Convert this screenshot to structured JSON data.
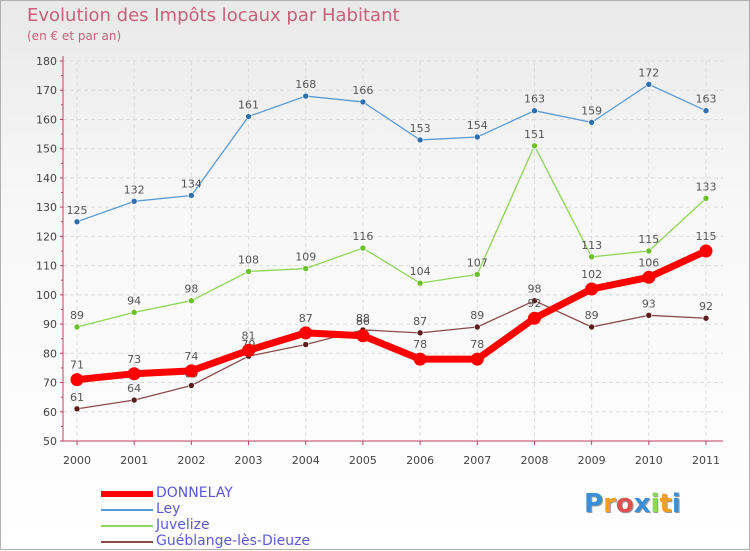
{
  "header": {
    "title": "Evolution des Impôts locaux par Habitant",
    "subtitle": "(en € et par an)"
  },
  "chart_data": {
    "type": "line",
    "title": "Evolution des Impôts locaux par Habitant",
    "subtitle": "(en € et par an)",
    "xlabel": "",
    "ylabel": "",
    "ylim": [
      50,
      180
    ],
    "yticks": [
      50,
      60,
      70,
      80,
      90,
      100,
      110,
      120,
      130,
      140,
      150,
      160,
      170,
      180
    ],
    "categories": [
      "2000",
      "2001",
      "2002",
      "2003",
      "2004",
      "2005",
      "2006",
      "2007",
      "2008",
      "2009",
      "2010",
      "2011"
    ],
    "grid": true,
    "legend_position": "bottom-left",
    "series": [
      {
        "name": "Ley",
        "color": "#5b9bd5",
        "marker_color": "#2f6fb0",
        "values": [
          125,
          132,
          134,
          161,
          168,
          166,
          153,
          154,
          163,
          159,
          172,
          163
        ]
      },
      {
        "name": "Juvelize",
        "color": "#8fd65a",
        "marker_color": "#6cc02a",
        "values": [
          89,
          94,
          98,
          108,
          109,
          116,
          104,
          107,
          151,
          113,
          115,
          133
        ]
      },
      {
        "name": "Guéblange-lès-Dieuze",
        "color": "#8b4a4a",
        "marker_color": "#5a1c1c",
        "values": [
          61,
          64,
          69,
          79,
          83,
          88,
          87,
          89,
          98,
          89,
          93,
          92
        ]
      },
      {
        "name": "DONNELAY",
        "color": "#ff0000",
        "marker_color": "#ff0000",
        "values": [
          71,
          73,
          74,
          81,
          87,
          86,
          78,
          78,
          92,
          102,
          106,
          115
        ]
      }
    ]
  },
  "legend": {
    "items": [
      {
        "label": "DONNELAY",
        "color": "#ff0000"
      },
      {
        "label": "Ley",
        "color": "#5b9bd5"
      },
      {
        "label": "Juvelize",
        "color": "#8fd65a"
      },
      {
        "label": "Guéblange-lès-Dieuze",
        "color": "#8b4a4a"
      }
    ]
  },
  "logo": {
    "letters": [
      "P",
      "r",
      "o",
      "x",
      "i",
      "t",
      "i"
    ],
    "colors": [
      "#3a8fd8",
      "#f0a020",
      "#e05050",
      "#3a8fd8",
      "#8fd65a",
      "#f0a020",
      "#3a8fd8"
    ]
  }
}
